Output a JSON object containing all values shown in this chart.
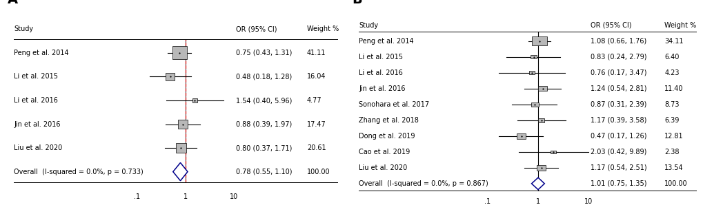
{
  "panel_A": {
    "label": "A",
    "studies": [
      "Peng et al. 2014",
      "Li et al. 2015",
      "Li et al. 2016",
      "Jin et al. 2016",
      "Liu et al. 2020"
    ],
    "or": [
      0.75,
      0.48,
      1.54,
      0.88,
      0.8
    ],
    "ci_low": [
      0.43,
      0.18,
      0.4,
      0.39,
      0.37
    ],
    "ci_high": [
      1.31,
      1.28,
      5.96,
      1.97,
      1.71
    ],
    "weights": [
      41.11,
      16.04,
      4.77,
      17.47,
      20.61
    ],
    "or_text": [
      "0.75 (0.43, 1.31)",
      "0.48 (0.18, 1.28)",
      "1.54 (0.40, 5.96)",
      "0.88 (0.39, 1.97)",
      "0.80 (0.37, 1.71)"
    ],
    "weight_text": [
      "41.11",
      "16.04",
      "4.77",
      "17.47",
      "20.61"
    ],
    "overall_or": 0.78,
    "overall_ci_low": 0.55,
    "overall_ci_high": 1.1,
    "overall_text": "0.78 (0.55, 1.10)",
    "overall_weight": "100.00",
    "overall_label": "Overall  (I-squared = 0.0%, p = 0.733)",
    "show_dashed": true,
    "xmin": 0.1,
    "xmax": 10,
    "xticks": [
      0.1,
      1,
      10
    ],
    "xticklabels": [
      ".1",
      "1",
      "10"
    ],
    "ref_line": 1.0
  },
  "panel_B": {
    "label": "B",
    "studies": [
      "Peng et al. 2014",
      "Li et al. 2015",
      "Li et al. 2016",
      "Jin et al. 2016",
      "Sonohara et al. 2017",
      "Zhang et al. 2018",
      "Dong et al. 2019",
      "Cao et al. 2019",
      "Liu et al. 2020"
    ],
    "or": [
      1.08,
      0.83,
      0.76,
      1.24,
      0.87,
      1.17,
      0.47,
      2.03,
      1.17
    ],
    "ci_low": [
      0.66,
      0.24,
      0.17,
      0.54,
      0.31,
      0.39,
      0.17,
      0.42,
      0.54
    ],
    "ci_high": [
      1.76,
      2.79,
      3.47,
      2.81,
      2.39,
      3.58,
      1.26,
      9.89,
      2.51
    ],
    "weights": [
      34.11,
      6.4,
      4.23,
      11.4,
      8.73,
      6.39,
      12.81,
      2.38,
      13.54
    ],
    "or_text": [
      "1.08 (0.66, 1.76)",
      "0.83 (0.24, 2.79)",
      "0.76 (0.17, 3.47)",
      "1.24 (0.54, 2.81)",
      "0.87 (0.31, 2.39)",
      "1.17 (0.39, 3.58)",
      "0.47 (0.17, 1.26)",
      "2.03 (0.42, 9.89)",
      "1.17 (0.54, 2.51)"
    ],
    "weight_text": [
      "34.11",
      "6.40",
      "4.23",
      "11.40",
      "8.73",
      "6.39",
      "12.81",
      "2.38",
      "13.54"
    ],
    "overall_or": 1.01,
    "overall_ci_low": 0.75,
    "overall_ci_high": 1.35,
    "overall_text": "1.01 (0.75, 1.35)",
    "overall_weight": "100.00",
    "overall_label": "Overall  (I-squared = 0.0%, p = 0.867)",
    "show_dashed": false,
    "xmin": 0.1,
    "xmax": 10,
    "xticks": [
      0.1,
      1,
      10
    ],
    "xticklabels": [
      ".1",
      "1",
      "10"
    ],
    "ref_line": 1.0
  },
  "header_or": "OR (95% CI)",
  "header_weight": "Weight %",
  "header_study": "Study",
  "box_color": "#b8b8b8",
  "diamond_color": "#00008b",
  "line_color": "#000000",
  "dashed_color": "#cc0000",
  "text_color": "#000000",
  "bg_color": "#ffffff",
  "fontsize": 7.0,
  "label_fontsize": 14
}
